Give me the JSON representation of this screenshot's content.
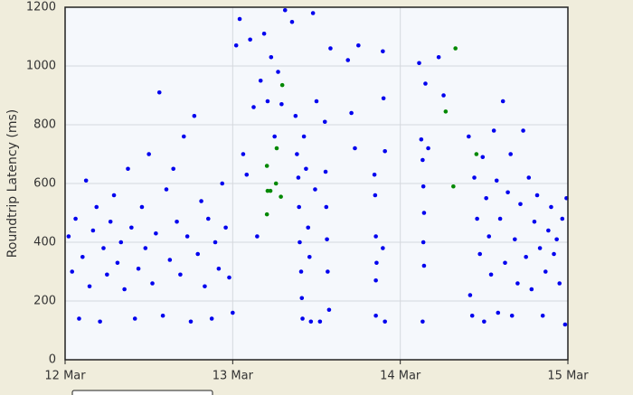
{
  "chart_data": {
    "type": "scatter",
    "y_label": "Roundtrip Latency (ms)",
    "xlim": [
      0,
      72
    ],
    "xticks": [
      {
        "value": 0,
        "label": "12 Mar"
      },
      {
        "value": 24,
        "label": "13 Mar"
      },
      {
        "value": 48,
        "label": "14 Mar"
      },
      {
        "value": 72,
        "label": "15 Mar"
      }
    ],
    "ylim": [
      0,
      1200
    ],
    "yticks": [
      0,
      200,
      400,
      600,
      800,
      1000,
      1200
    ],
    "grid": true,
    "series": [
      {
        "color": "#0000ee",
        "x": [
          0.5,
          1,
          1.5,
          2,
          2.5,
          3,
          3.5,
          4,
          4.5,
          5,
          5.5,
          6,
          6.5,
          7,
          7.5,
          8,
          8.5,
          9,
          9.5,
          10,
          10.5,
          11,
          11.5,
          12,
          12.5,
          13,
          13.5,
          14,
          14.5,
          15,
          15.5,
          16,
          16.5,
          17,
          17.5,
          18,
          18.5,
          19,
          19.5,
          20,
          20.5,
          21,
          21.5,
          22,
          22.5,
          23,
          23.5,
          24,
          24.5,
          25,
          25.5,
          26,
          26.5,
          27,
          27.5,
          28,
          28.5,
          29,
          29.5,
          30,
          30.5,
          31,
          31.5,
          32.5,
          33,
          33.2,
          33.4,
          33.5,
          33.6,
          33.8,
          33.9,
          34,
          34.2,
          34.5,
          34.8,
          35,
          35.2,
          35.5,
          35.8,
          36,
          37.2,
          37.3,
          37.4,
          37.5,
          37.6,
          37.8,
          38,
          36.5,
          40.5,
          41,
          41.5,
          42,
          44.3,
          44.4,
          44.5,
          44.6,
          44.5,
          44.5,
          45.5,
          45.6,
          45.8,
          45.5,
          45.8,
          50.7,
          51,
          51.2,
          51.3,
          51.4,
          51.3,
          51.4,
          51.2,
          51.6,
          52,
          53.5,
          54.2,
          57.8,
          58,
          58.3,
          58.6,
          59,
          59.4,
          59.8,
          60,
          60.3,
          60.7,
          61,
          61.4,
          61.8,
          62,
          62.3,
          62.7,
          63,
          63.4,
          63.8,
          64,
          64.4,
          64.8,
          65.2,
          65.6,
          66,
          66.4,
          66.8,
          67.2,
          67.6,
          68,
          68.4,
          68.8,
          69.2,
          69.6,
          70,
          70.4,
          70.8,
          71.2,
          71.6,
          71.8
        ],
        "values": [
          420,
          300,
          480,
          140,
          350,
          610,
          250,
          440,
          520,
          130,
          380,
          290,
          470,
          560,
          330,
          400,
          240,
          650,
          450,
          140,
          310,
          520,
          380,
          700,
          260,
          430,
          910,
          150,
          580,
          340,
          650,
          470,
          290,
          760,
          420,
          130,
          830,
          360,
          540,
          250,
          480,
          140,
          400,
          310,
          600,
          450,
          280,
          160,
          1070,
          1160,
          700,
          630,
          1090,
          860,
          420,
          950,
          1110,
          880,
          1030,
          760,
          980,
          870,
          1190,
          1150,
          830,
          700,
          620,
          520,
          400,
          300,
          210,
          140,
          760,
          650,
          450,
          350,
          130,
          1180,
          580,
          880,
          810,
          640,
          520,
          410,
          300,
          170,
          1060,
          130,
          1020,
          840,
          720,
          1070,
          630,
          560,
          420,
          330,
          270,
          150,
          1050,
          890,
          710,
          380,
          130,
          1010,
          750,
          680,
          590,
          500,
          400,
          320,
          130,
          940,
          720,
          1030,
          900,
          760,
          220,
          150,
          620,
          480,
          360,
          690,
          130,
          550,
          420,
          290,
          780,
          610,
          160,
          480,
          880,
          330,
          570,
          700,
          150,
          410,
          260,
          530,
          780,
          350,
          620,
          240,
          470,
          560,
          380,
          150,
          300,
          440,
          520,
          360,
          410,
          260,
          480,
          120,
          550
        ]
      },
      {
        "color": "#008800",
        "x": [
          28.9,
          29,
          29.4,
          30.2,
          30.9,
          31.1,
          30.3,
          28.9,
          54.5,
          55.6,
          55.9,
          58.9
        ],
        "values": [
          660,
          575,
          575,
          600,
          555,
          935,
          720,
          495,
          845,
          590,
          1060,
          700
        ]
      }
    ]
  }
}
